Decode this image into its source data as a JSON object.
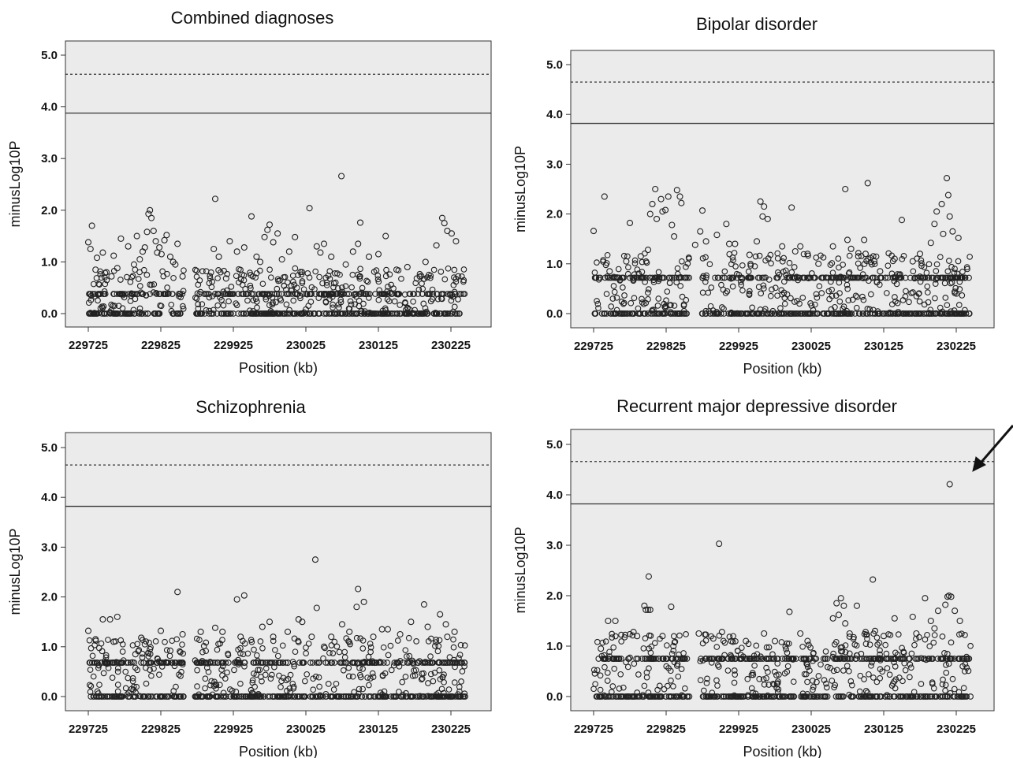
{
  "figure": {
    "annotation": "arrow",
    "panels": [
      {
        "title": "Combined diagnoses",
        "xlabel": "Position (kb)",
        "ylabel": "minusLog10P",
        "xticks": [
          "229725",
          "229825",
          "229925",
          "230025",
          "230125",
          "230225"
        ],
        "yticks": [
          "0.0",
          "1.0",
          "2.0",
          "3.0",
          "4.0",
          "5.0"
        ]
      },
      {
        "title": "Bipolar disorder",
        "xlabel": "Position (kb)",
        "ylabel": "minusLog10P",
        "xticks": [
          "229725",
          "229825",
          "229925",
          "230025",
          "230125",
          "230225"
        ],
        "yticks": [
          "0.0",
          "1.0",
          "2.0",
          "3.0",
          "4.0",
          "5.0"
        ]
      },
      {
        "title": "Schizophrenia",
        "xlabel": "Position (kb)",
        "ylabel": "minusLog10P",
        "xticks": [
          "229725",
          "229825",
          "229925",
          "230025",
          "230125",
          "230225"
        ],
        "yticks": [
          "0.0",
          "1.0",
          "2.0",
          "3.0",
          "4.0",
          "5.0"
        ]
      },
      {
        "title": "Recurrent major depressive disorder",
        "xlabel": "Position (kb)",
        "ylabel": "minusLog10P",
        "xticks": [
          "229725",
          "229825",
          "229925",
          "230025",
          "230125",
          "230225"
        ],
        "yticks": [
          "0.0",
          "1.0",
          "2.0",
          "3.0",
          "4.0",
          "5.0"
        ]
      }
    ]
  },
  "chart_data": [
    {
      "type": "scatter",
      "title": "Combined diagnoses",
      "xlabel": "Position (kb)",
      "ylabel": "minusLog10P",
      "xlim": [
        229695,
        230255
      ],
      "ylim": [
        -0.15,
        5.25
      ],
      "grid": false,
      "background": "#ebebeb",
      "reference_lines": [
        {
          "y": 3.88,
          "style": "solid"
        },
        {
          "y": 4.63,
          "style": "dotted"
        }
      ],
      "points": [
        [
          229725,
          1.38
        ],
        [
          229728,
          1.25
        ],
        [
          229730,
          1.7
        ],
        [
          229735,
          0.85
        ],
        [
          229737,
          1.08
        ],
        [
          229745,
          1.18
        ],
        [
          229750,
          0.8
        ],
        [
          229757,
          0.72
        ],
        [
          229760,
          1.12
        ],
        [
          229765,
          0.88
        ],
        [
          229770,
          1.45
        ],
        [
          229780,
          1.3
        ],
        [
          229788,
          0.95
        ],
        [
          229792,
          1.5
        ],
        [
          229796,
          1.05
        ],
        [
          229800,
          1.2
        ],
        [
          229803,
          1.28
        ],
        [
          229806,
          1.58
        ],
        [
          229808,
          1.93
        ],
        [
          229810,
          2.0
        ],
        [
          229812,
          1.85
        ],
        [
          229815,
          1.6
        ],
        [
          229818,
          1.4
        ],
        [
          229820,
          1.18
        ],
        [
          229823,
          1.28
        ],
        [
          229826,
          1.15
        ],
        [
          229830,
          1.42
        ],
        [
          229833,
          1.52
        ],
        [
          229838,
          1.1
        ],
        [
          229842,
          1.0
        ],
        [
          229845,
          0.95
        ],
        [
          229848,
          1.35
        ],
        [
          229855,
          0.72
        ],
        [
          229900,
          2.22
        ],
        [
          229898,
          1.25
        ],
        [
          229905,
          1.1
        ],
        [
          229915,
          0.68
        ],
        [
          229920,
          1.4
        ],
        [
          229930,
          1.2
        ],
        [
          229940,
          1.28
        ],
        [
          229950,
          1.88
        ],
        [
          229957,
          1.1
        ],
        [
          229962,
          1.0
        ],
        [
          229968,
          1.48
        ],
        [
          229972,
          1.62
        ],
        [
          229975,
          1.72
        ],
        [
          229980,
          1.38
        ],
        [
          229986,
          1.55
        ],
        [
          229992,
          1.05
        ],
        [
          230002,
          1.2
        ],
        [
          230010,
          1.48
        ],
        [
          230030,
          2.04
        ],
        [
          230040,
          1.3
        ],
        [
          230045,
          1.18
        ],
        [
          230050,
          1.35
        ],
        [
          230060,
          1.1
        ],
        [
          230074,
          2.66
        ],
        [
          230080,
          0.95
        ],
        [
          230090,
          1.2
        ],
        [
          230097,
          1.35
        ],
        [
          230100,
          1.76
        ],
        [
          230112,
          1.1
        ],
        [
          230125,
          1.15
        ],
        [
          230135,
          1.5
        ],
        [
          230150,
          0.85
        ],
        [
          230165,
          0.9
        ],
        [
          230178,
          0.68
        ],
        [
          230190,
          1.0
        ],
        [
          230205,
          1.32
        ],
        [
          230213,
          1.85
        ],
        [
          230216,
          1.75
        ],
        [
          230220,
          1.6
        ],
        [
          230226,
          1.55
        ],
        [
          230232,
          1.4
        ],
        [
          230235,
          0.72
        ],
        [
          229760,
          0.38
        ],
        [
          229800,
          0.38
        ],
        [
          229850,
          0.38
        ],
        [
          229900,
          0.38
        ],
        [
          229950,
          0.38
        ],
        [
          230000,
          0.38
        ],
        [
          230050,
          0.38
        ],
        [
          230100,
          0.38
        ],
        [
          230150,
          0.38
        ],
        [
          230200,
          0.38
        ],
        [
          230230,
          0.38
        ],
        [
          229780,
          0.0
        ],
        [
          229880,
          0.0
        ],
        [
          229980,
          0.0
        ],
        [
          230080,
          0.0
        ],
        [
          230180,
          0.0
        ]
      ]
    },
    {
      "type": "scatter",
      "title": "Bipolar disorder",
      "xlabel": "Position (kb)",
      "ylabel": "minusLog10P",
      "xlim": [
        229695,
        230255
      ],
      "ylim": [
        -0.15,
        5.25
      ],
      "grid": false,
      "background": "#ebebeb",
      "reference_lines": [
        {
          "y": 3.82,
          "style": "solid"
        },
        {
          "y": 4.65,
          "style": "dotted"
        }
      ],
      "points": [
        [
          229725,
          1.66
        ],
        [
          229740,
          2.35
        ],
        [
          229747,
          0.85
        ],
        [
          229755,
          0.72
        ],
        [
          229770,
          1.05
        ],
        [
          229775,
          1.82
        ],
        [
          229790,
          1.15
        ],
        [
          229800,
          1.28
        ],
        [
          229803,
          2.0
        ],
        [
          229806,
          2.2
        ],
        [
          229810,
          2.5
        ],
        [
          229812,
          1.9
        ],
        [
          229818,
          2.3
        ],
        [
          229820,
          2.05
        ],
        [
          229824,
          2.08
        ],
        [
          229828,
          2.35
        ],
        [
          229833,
          1.78
        ],
        [
          229836,
          1.55
        ],
        [
          229840,
          2.48
        ],
        [
          229844,
          2.35
        ],
        [
          229846,
          2.22
        ],
        [
          229865,
          1.38
        ],
        [
          229872,
          1.65
        ],
        [
          229875,
          2.07
        ],
        [
          229880,
          1.45
        ],
        [
          229895,
          1.58
        ],
        [
          229908,
          1.8
        ],
        [
          229912,
          1.4
        ],
        [
          229920,
          1.4
        ],
        [
          229940,
          1.18
        ],
        [
          229950,
          1.45
        ],
        [
          229955,
          2.25
        ],
        [
          229958,
          1.95
        ],
        [
          229960,
          2.15
        ],
        [
          229965,
          1.9
        ],
        [
          229985,
          1.35
        ],
        [
          229998,
          2.13
        ],
        [
          230003,
          1.25
        ],
        [
          230010,
          1.35
        ],
        [
          230020,
          1.2
        ],
        [
          230035,
          1.0
        ],
        [
          230055,
          1.35
        ],
        [
          230072,
          2.5
        ],
        [
          230075,
          1.48
        ],
        [
          230080,
          1.3
        ],
        [
          230090,
          1.15
        ],
        [
          230098,
          1.48
        ],
        [
          230100,
          1.2
        ],
        [
          230103,
          2.62
        ],
        [
          230112,
          1.05
        ],
        [
          230120,
          0.85
        ],
        [
          230140,
          1.1
        ],
        [
          230150,
          1.88
        ],
        [
          230165,
          1.05
        ],
        [
          230175,
          1.2
        ],
        [
          230190,
          1.42
        ],
        [
          230195,
          1.8
        ],
        [
          230198,
          2.05
        ],
        [
          230205,
          2.2
        ],
        [
          230207,
          1.6
        ],
        [
          230212,
          2.72
        ],
        [
          230214,
          2.38
        ],
        [
          230216,
          1.95
        ],
        [
          230220,
          1.65
        ],
        [
          230228,
          1.52
        ],
        [
          229760,
          0.72
        ],
        [
          229820,
          0.72
        ],
        [
          229880,
          0.72
        ],
        [
          229940,
          0.72
        ],
        [
          230000,
          0.72
        ],
        [
          230060,
          0.72
        ],
        [
          230120,
          0.72
        ],
        [
          230180,
          0.72
        ],
        [
          230230,
          0.72
        ],
        [
          229780,
          0.0
        ],
        [
          229880,
          0.0
        ],
        [
          229980,
          0.0
        ],
        [
          230080,
          0.0
        ],
        [
          230180,
          0.0
        ]
      ]
    },
    {
      "type": "scatter",
      "title": "Schizophrenia",
      "xlabel": "Position (kb)",
      "ylabel": "minusLog10P",
      "xlim": [
        229695,
        230255
      ],
      "ylim": [
        -0.15,
        5.25
      ],
      "grid": false,
      "background": "#ebebeb",
      "reference_lines": [
        {
          "y": 3.82,
          "style": "solid"
        },
        {
          "y": 4.65,
          "style": "dotted"
        }
      ],
      "points": [
        [
          229725,
          1.32
        ],
        [
          229735,
          1.15
        ],
        [
          229745,
          1.55
        ],
        [
          229755,
          1.55
        ],
        [
          229760,
          1.1
        ],
        [
          229765,
          1.6
        ],
        [
          229790,
          0.85
        ],
        [
          229798,
          1.18
        ],
        [
          229803,
          1.05
        ],
        [
          229810,
          0.95
        ],
        [
          229825,
          1.32
        ],
        [
          229838,
          0.92
        ],
        [
          229848,
          2.1
        ],
        [
          229855,
          1.25
        ],
        [
          229880,
          1.3
        ],
        [
          229900,
          1.38
        ],
        [
          229910,
          1.3
        ],
        [
          229930,
          1.95
        ],
        [
          229935,
          1.2
        ],
        [
          229940,
          2.03
        ],
        [
          229965,
          1.4
        ],
        [
          229975,
          1.5
        ],
        [
          229980,
          1.2
        ],
        [
          230000,
          1.3
        ],
        [
          230015,
          1.55
        ],
        [
          230020,
          1.5
        ],
        [
          230033,
          1.2
        ],
        [
          230038,
          2.75
        ],
        [
          230040,
          1.78
        ],
        [
          230050,
          1.0
        ],
        [
          230060,
          1.2
        ],
        [
          230075,
          1.45
        ],
        [
          230085,
          1.3
        ],
        [
          230095,
          1.8
        ],
        [
          230097,
          2.16
        ],
        [
          230105,
          1.9
        ],
        [
          230118,
          1.2
        ],
        [
          230130,
          1.35
        ],
        [
          230138,
          1.35
        ],
        [
          230155,
          1.25
        ],
        [
          230170,
          1.5
        ],
        [
          230188,
          1.85
        ],
        [
          230193,
          1.4
        ],
        [
          230210,
          1.65
        ],
        [
          230218,
          1.45
        ],
        [
          230220,
          1.2
        ],
        [
          230230,
          1.3
        ],
        [
          229760,
          0.68
        ],
        [
          229820,
          0.68
        ],
        [
          229880,
          0.68
        ],
        [
          229940,
          0.68
        ],
        [
          230000,
          0.68
        ],
        [
          230060,
          0.68
        ],
        [
          230120,
          0.68
        ],
        [
          230180,
          0.68
        ],
        [
          230230,
          0.68
        ],
        [
          229780,
          0.0
        ],
        [
          229880,
          0.0
        ],
        [
          229980,
          0.0
        ],
        [
          230080,
          0.0
        ],
        [
          230180,
          0.0
        ]
      ]
    },
    {
      "type": "scatter",
      "title": "Recurrent major depressive disorder",
      "xlabel": "Position (kb)",
      "ylabel": "minusLog10P",
      "xlim": [
        229695,
        230255
      ],
      "ylim": [
        -0.15,
        5.25
      ],
      "grid": false,
      "background": "#ebebeb",
      "reference_lines": [
        {
          "y": 3.82,
          "style": "solid"
        },
        {
          "y": 4.66,
          "style": "dotted"
        }
      ],
      "points": [
        [
          229735,
          0.95
        ],
        [
          229745,
          1.5
        ],
        [
          229755,
          1.5
        ],
        [
          229780,
          1.28
        ],
        [
          229785,
          1.2
        ],
        [
          229795,
          1.8
        ],
        [
          229797,
          1.72
        ],
        [
          229800,
          1.72
        ],
        [
          229801,
          2.38
        ],
        [
          229803,
          1.72
        ],
        [
          229820,
          1.2
        ],
        [
          229832,
          1.78
        ],
        [
          229835,
          1.0
        ],
        [
          229870,
          1.25
        ],
        [
          229890,
          1.15
        ],
        [
          229898,
          3.03
        ],
        [
          229902,
          1.28
        ],
        [
          229915,
          1.1
        ],
        [
          229935,
          1.1
        ],
        [
          229960,
          1.25
        ],
        [
          229975,
          1.1
        ],
        [
          229995,
          1.68
        ],
        [
          230010,
          1.25
        ],
        [
          230020,
          1.1
        ],
        [
          230055,
          1.55
        ],
        [
          230060,
          1.85
        ],
        [
          230063,
          1.62
        ],
        [
          230066,
          1.95
        ],
        [
          230070,
          1.8
        ],
        [
          230072,
          1.45
        ],
        [
          230078,
          1.25
        ],
        [
          230088,
          1.8
        ],
        [
          230100,
          1.28
        ],
        [
          230110,
          2.32
        ],
        [
          230113,
          1.3
        ],
        [
          230125,
          1.2
        ],
        [
          230140,
          1.55
        ],
        [
          230165,
          1.58
        ],
        [
          230170,
          1.25
        ],
        [
          230182,
          1.95
        ],
        [
          230190,
          1.5
        ],
        [
          230195,
          1.35
        ],
        [
          230200,
          1.7
        ],
        [
          230210,
          1.82
        ],
        [
          230213,
          1.98
        ],
        [
          230215,
          2.0
        ],
        [
          230218,
          1.98
        ],
        [
          230223,
          1.7
        ],
        [
          230230,
          1.5
        ],
        [
          230216,
          4.21
        ],
        [
          229760,
          0.75
        ],
        [
          229820,
          0.75
        ],
        [
          229880,
          0.75
        ],
        [
          229940,
          0.75
        ],
        [
          230000,
          0.75
        ],
        [
          230060,
          0.75
        ],
        [
          230120,
          0.75
        ],
        [
          230180,
          0.75
        ],
        [
          230230,
          0.75
        ],
        [
          229780,
          0.0
        ],
        [
          229880,
          0.0
        ],
        [
          229980,
          0.0
        ],
        [
          230080,
          0.0
        ],
        [
          230180,
          0.0
        ]
      ]
    }
  ]
}
